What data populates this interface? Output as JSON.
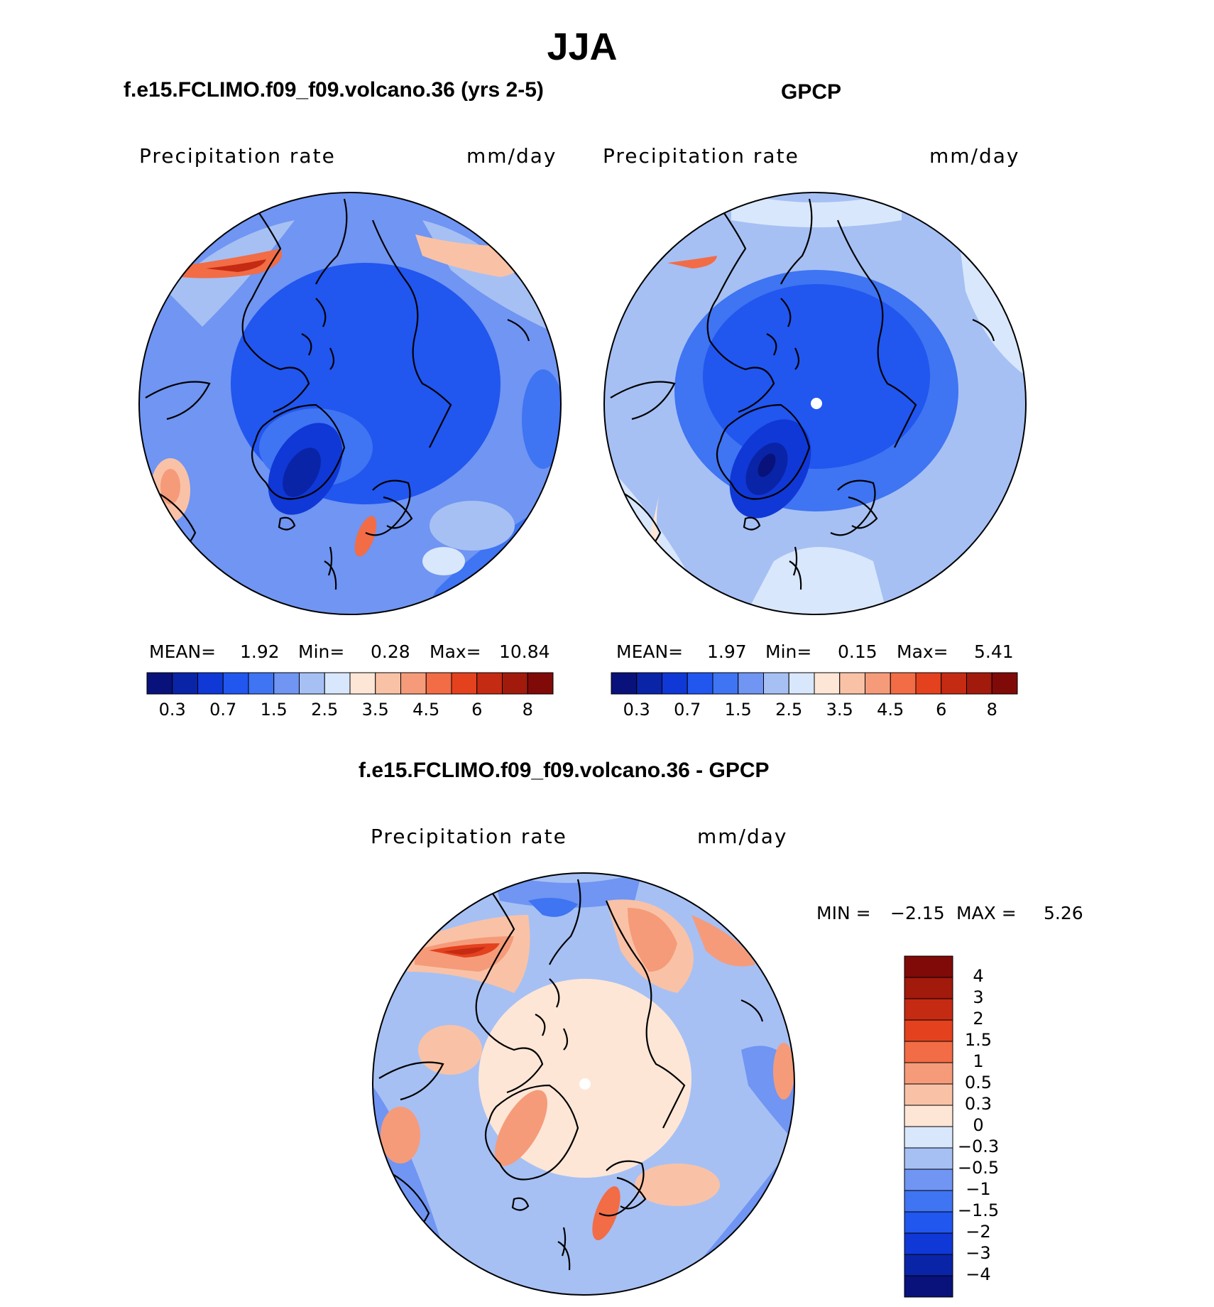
{
  "page": {
    "title": "JJA",
    "units": "mm/day",
    "variable": "Precipitation rate"
  },
  "chart_data": [
    {
      "type": "heatmap",
      "projection": "north polar stereographic",
      "title": "f.e15.FCLIMO.f09_f09.volcano.36 (yrs 2-5)",
      "left_label": "Precipitation rate",
      "right_label": "mm/day",
      "stats": {
        "mean_label": "MEAN=",
        "mean": "1.92",
        "min_label": "Min=",
        "min": "0.28",
        "max_label": "Max=",
        "max": "10.84"
      },
      "colorbar_levels": [
        "0.3",
        "0.7",
        "1.5",
        "2.5",
        "3.5",
        "4.5",
        "6",
        "8"
      ],
      "colorbar_colors": [
        "#08127a",
        "#0a24a8",
        "#1038d6",
        "#2156ef",
        "#3f74f2",
        "#7095f2",
        "#a6c0f4",
        "#d8e7fb",
        "#fde6d6",
        "#f9c2a6",
        "#f59b7a",
        "#f26c46",
        "#e4411e",
        "#c52a12",
        "#a11a0c",
        "#800a08"
      ]
    },
    {
      "type": "heatmap",
      "projection": "north polar stereographic",
      "title": "GPCP",
      "left_label": "Precipitation rate",
      "right_label": "mm/day",
      "stats": {
        "mean_label": "MEAN=",
        "mean": "1.97",
        "min_label": "Min=",
        "min": "0.15",
        "max_label": "Max=",
        "max": "5.41"
      },
      "colorbar_levels": [
        "0.3",
        "0.7",
        "1.5",
        "2.5",
        "3.5",
        "4.5",
        "6",
        "8"
      ],
      "colorbar_colors": [
        "#08127a",
        "#0a24a8",
        "#1038d6",
        "#2156ef",
        "#3f74f2",
        "#7095f2",
        "#a6c0f4",
        "#d8e7fb",
        "#fde6d6",
        "#f9c2a6",
        "#f59b7a",
        "#f26c46",
        "#e4411e",
        "#c52a12",
        "#a11a0c",
        "#800a08"
      ]
    },
    {
      "type": "heatmap",
      "projection": "north polar stereographic",
      "title": "f.e15.FCLIMO.f09_f09.volcano.36 - GPCP",
      "left_label": "Precipitation rate",
      "right_label": "mm/day",
      "stats": {
        "min_label": "MIN =",
        "min": "−2.15",
        "max_label": "MAX =",
        "max": "5.26"
      },
      "colorbar_levels": [
        "4",
        "3",
        "2",
        "1.5",
        "1",
        "0.5",
        "0.3",
        "0",
        "−0.3",
        "−0.5",
        "−1",
        "−1.5",
        "−2",
        "−3",
        "−4"
      ],
      "colorbar_colors": [
        "#800a08",
        "#a11a0c",
        "#c52a12",
        "#e4411e",
        "#f26c46",
        "#f59b7a",
        "#f9c2a6",
        "#fde6d6",
        "#d8e7fb",
        "#a6c0f4",
        "#7095f2",
        "#3f74f2",
        "#2156ef",
        "#1038d6",
        "#0a24a8",
        "#08127a"
      ]
    }
  ]
}
